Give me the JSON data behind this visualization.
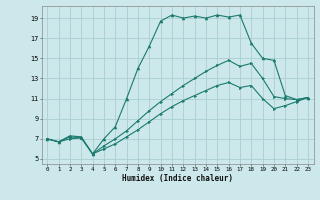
{
  "xlabel": "Humidex (Indice chaleur)",
  "bg_color": "#cce8ea",
  "grid_color": "#aacfd2",
  "line_color": "#1a7a6e",
  "xlim": [
    -0.5,
    23.5
  ],
  "ylim": [
    4.5,
    20.2
  ],
  "xticks": [
    0,
    1,
    2,
    3,
    4,
    5,
    6,
    7,
    8,
    9,
    10,
    11,
    12,
    13,
    14,
    15,
    16,
    17,
    18,
    19,
    20,
    21,
    22,
    23
  ],
  "yticks": [
    5,
    7,
    9,
    11,
    13,
    15,
    17,
    19
  ],
  "line1_x": [
    0,
    1,
    2,
    3,
    4,
    5,
    6,
    7,
    8,
    9,
    10,
    11,
    12,
    13,
    14,
    15,
    16,
    17,
    18,
    19,
    20,
    21,
    22,
    23
  ],
  "line1_y": [
    7.0,
    6.7,
    7.3,
    7.2,
    5.5,
    7.0,
    8.2,
    11.0,
    14.0,
    16.2,
    18.7,
    19.3,
    19.0,
    19.2,
    19.0,
    19.3,
    19.1,
    19.3,
    16.5,
    15.0,
    14.8,
    11.3,
    10.9,
    11.1
  ],
  "line2_x": [
    0,
    1,
    2,
    3,
    4,
    5,
    6,
    7,
    8,
    9,
    10,
    11,
    12,
    13,
    14,
    15,
    16,
    17,
    18,
    19,
    20,
    21,
    22,
    23
  ],
  "line2_y": [
    7.0,
    6.7,
    7.2,
    7.1,
    5.5,
    6.3,
    7.0,
    7.8,
    8.8,
    9.8,
    10.7,
    11.5,
    12.3,
    13.0,
    13.7,
    14.3,
    14.8,
    14.2,
    14.5,
    13.0,
    11.2,
    11.0,
    10.9,
    11.1
  ],
  "line3_x": [
    0,
    1,
    2,
    3,
    4,
    5,
    6,
    7,
    8,
    9,
    10,
    11,
    12,
    13,
    14,
    15,
    16,
    17,
    18,
    19,
    20,
    21,
    22,
    23
  ],
  "line3_y": [
    7.0,
    6.7,
    7.0,
    7.1,
    5.5,
    6.0,
    6.5,
    7.2,
    7.9,
    8.7,
    9.5,
    10.2,
    10.8,
    11.3,
    11.8,
    12.3,
    12.6,
    12.1,
    12.3,
    11.0,
    10.0,
    10.3,
    10.7,
    11.1
  ]
}
